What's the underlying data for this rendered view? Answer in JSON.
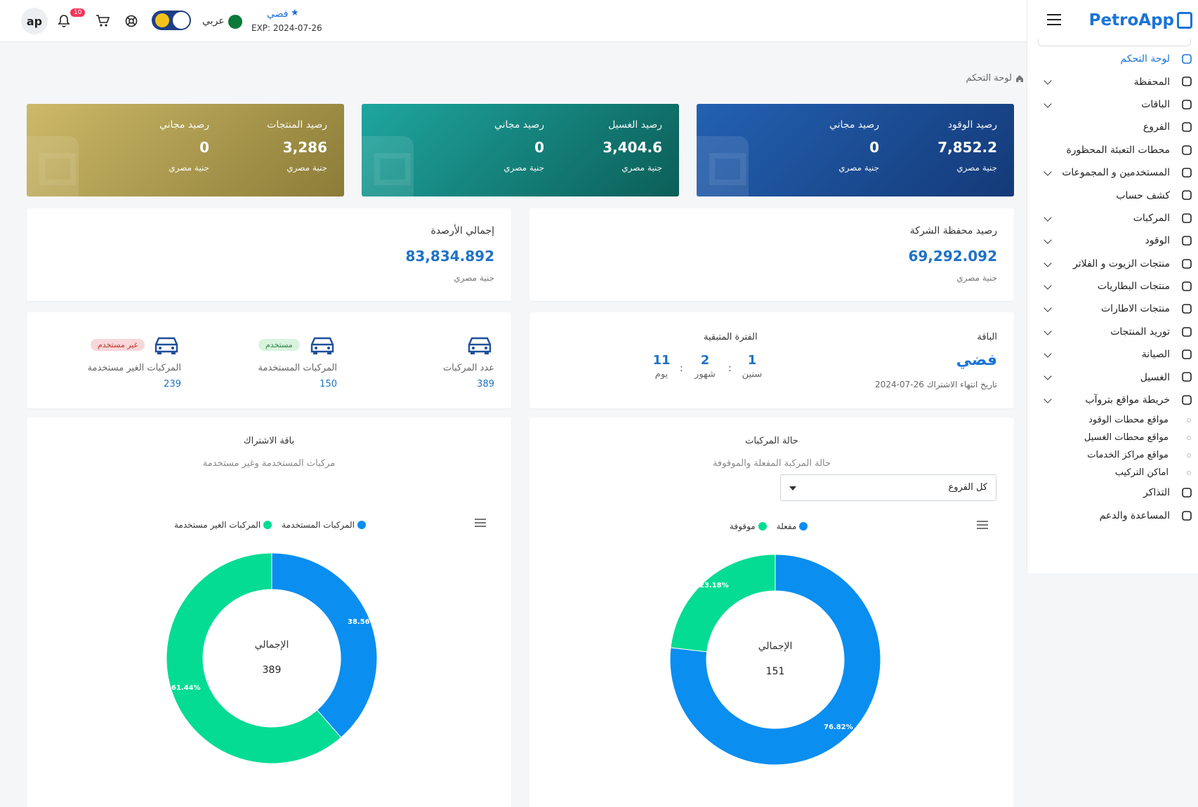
{
  "topbar": {
    "avatar": "ap",
    "notifications_count": "10",
    "language": "عربي",
    "plan_name": "فضي",
    "plan_exp": "EXP: 2024-07-26"
  },
  "sidebar": {
    "logo": "PetroApp",
    "items": [
      {
        "label": "لوحة التحكم",
        "icon": "home-icon",
        "active": true
      },
      {
        "label": "المحفظة",
        "icon": "wallet-icon",
        "chevron": true
      },
      {
        "label": "الباقات",
        "icon": "package-icon",
        "chevron": true
      },
      {
        "label": "الفروع",
        "icon": "location-pin-icon"
      },
      {
        "label": "محطات التعبئة المحظورة",
        "icon": "fuel-pump-icon"
      },
      {
        "label": "المستخدمين و المجموعات",
        "icon": "users-icon",
        "chevron": true
      },
      {
        "label": "كشف حساب",
        "icon": "dollar-icon"
      },
      {
        "label": "المركبات",
        "icon": "car-icon",
        "chevron": true
      },
      {
        "label": "الوقود",
        "icon": "fuel-icon",
        "chevron": true
      },
      {
        "label": "منتجات الزيوت و الفلاتر",
        "icon": "oil-icon",
        "chevron": true
      },
      {
        "label": "منتجات البطاريات",
        "icon": "battery-icon",
        "chevron": true
      },
      {
        "label": "منتجات الاطارات",
        "icon": "wrench-icon",
        "chevron": true
      },
      {
        "label": "توريد المنتجات",
        "icon": "plus-box-icon",
        "chevron": true
      },
      {
        "label": "الصيانة",
        "icon": "plus-box-icon",
        "chevron": true
      },
      {
        "label": "الغسيل",
        "icon": "car-wash-icon",
        "chevron": true
      },
      {
        "label": "خريطة مواقع بتروآب",
        "icon": "map-icon",
        "chevron": true
      }
    ],
    "subitems": [
      "مواقع محطات الوقود",
      "مواقع محطات الغسيل",
      "مواقع مراكز الخدمات",
      "اماكن التركيب"
    ],
    "footer_items": [
      {
        "label": "التذاكر",
        "icon": "support-icon"
      },
      {
        "label": "المساعدة والدعم",
        "icon": "whatsapp-icon"
      }
    ]
  },
  "breadcrumb": "لوحة التحكم",
  "stat_cards": [
    {
      "left_label": "رصيد مجاني",
      "left_value": "0",
      "left_currency": "جنية مصري",
      "right_label": "رصيد المنتجات",
      "right_value": "3,286",
      "right_currency": "جنية مصري"
    },
    {
      "left_label": "رصيد مجاني",
      "left_value": "0",
      "left_currency": "جنية مصري",
      "right_label": "رصيد الغسيل",
      "right_value": "3,404.6",
      "right_currency": "جنية مصري"
    },
    {
      "left_label": "رصيد مجاني",
      "left_value": "0",
      "left_currency": "جنية مصري",
      "right_label": "رصيد الوقود",
      "right_value": "7,852.2",
      "right_currency": "جنية مصري"
    }
  ],
  "balances": {
    "total": {
      "label": "إجمالي الأرصدة",
      "value": "83,834.892",
      "currency": "جنية مصري"
    },
    "company": {
      "label": "رصيد محفظة الشركة",
      "value": "69,292.092",
      "currency": "جنية مصري"
    }
  },
  "vehicles": {
    "count": {
      "label": "عدد المركبات",
      "value": "389"
    },
    "used": {
      "label": "المركبات المستخدمة",
      "value": "150",
      "tag": "مستخدم"
    },
    "unused": {
      "label": "المركبات الغير مستخدمة",
      "value": "239",
      "tag": "غير مستخدم"
    }
  },
  "package": {
    "label": "الباقة",
    "name": "فضي",
    "end_date": "تاريخ انتهاء الاشتراك 26-07-2024",
    "remaining_label": "الفترة المتبقية",
    "years": {
      "value": "1",
      "unit": "سنين"
    },
    "months": {
      "value": "2",
      "unit": "شهور"
    },
    "days": {
      "value": "11",
      "unit": "يوم"
    },
    "sep": ":"
  },
  "chart_data": [
    {
      "type": "pie",
      "title": "باقة الاشتراك",
      "subtitle": "مركبات المستخدمة وغير مستخدمة",
      "center_label": "الإجمالي",
      "total": "389",
      "categories": [
        "المركبات المستخدمة",
        "المركبات الغير مستخدمة"
      ],
      "values": [
        150,
        239
      ],
      "percent_labels": [
        "38.56%",
        "61.44%"
      ],
      "colors": [
        "#0a8ef0",
        "#04dc93"
      ]
    },
    {
      "type": "pie",
      "title": "حالة المركبات",
      "subtitle": "حالة المركبة المفعلة والموقوفة",
      "filter": "كل الفروع",
      "center_label": "الإجمالي",
      "total": "151",
      "categories": [
        "مفعلة",
        "موقوفة"
      ],
      "values": [
        116,
        35
      ],
      "percent_labels": [
        "76.82%",
        "23.18%"
      ],
      "colors": [
        "#0a8ef0",
        "#04dc93"
      ]
    }
  ]
}
